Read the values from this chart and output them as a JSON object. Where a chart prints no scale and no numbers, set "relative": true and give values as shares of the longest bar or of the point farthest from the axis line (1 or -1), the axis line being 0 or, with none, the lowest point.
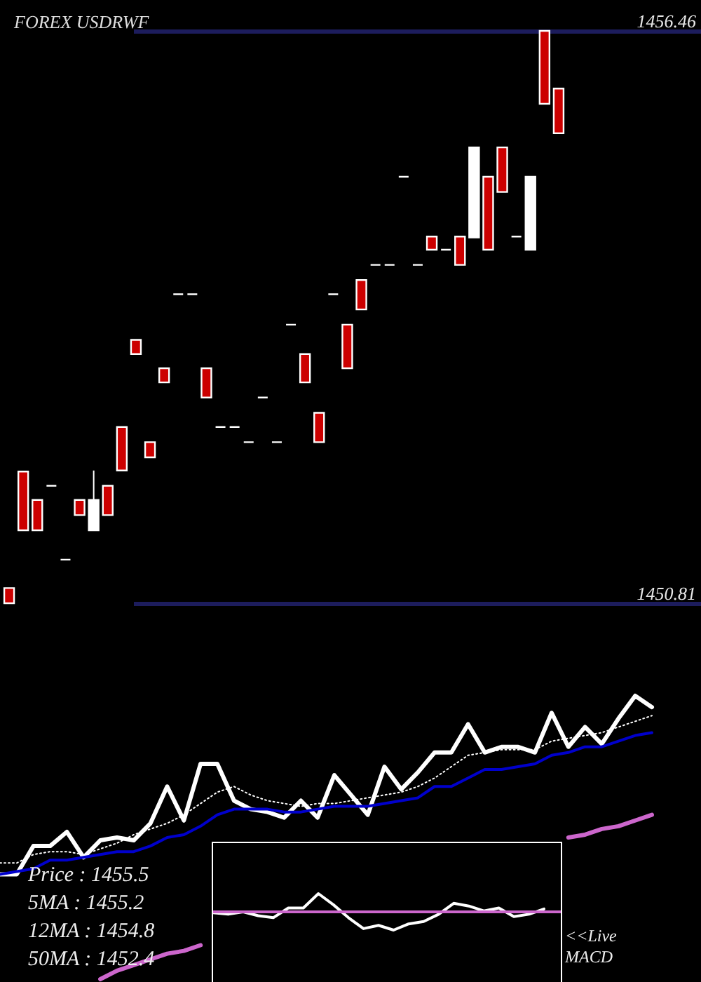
{
  "chart_data": [
    {
      "type": "candlestick",
      "title": "FOREX  USDRWF",
      "categories": [
        null,
        null,
        null,
        null,
        null,
        null,
        null,
        null,
        null,
        null,
        null,
        null,
        null,
        null,
        null,
        null,
        null,
        null,
        null,
        null,
        null,
        null,
        null,
        null,
        null,
        null,
        null,
        null,
        null,
        null,
        null,
        null,
        null,
        null,
        null,
        null,
        null,
        null,
        null,
        null
      ],
      "ohlc": [
        [
          1450.96,
          1450.96,
          1450.81,
          1450.81
        ],
        [
          1452.11,
          1452.11,
          1451.53,
          1451.53
        ],
        [
          1451.83,
          1451.83,
          1451.53,
          1451.53
        ],
        [
          1451.97,
          1451.97,
          1451.97,
          1451.97
        ],
        [
          1451.24,
          1451.24,
          1451.24,
          1451.24
        ],
        [
          1451.83,
          1451.83,
          1451.68,
          1451.68
        ],
        [
          1451.53,
          1452.12,
          1451.53,
          1451.83
        ],
        [
          1451.97,
          1451.97,
          1451.68,
          1451.68
        ],
        [
          1452.55,
          1452.55,
          1452.12,
          1452.12
        ],
        [
          1453.41,
          1453.41,
          1453.27,
          1453.27
        ],
        [
          1452.4,
          1452.4,
          1452.25,
          1452.25
        ],
        [
          1453.13,
          1453.13,
          1452.99,
          1452.99
        ],
        [
          1453.86,
          1453.86,
          1453.86,
          1453.86
        ],
        [
          1453.86,
          1453.86,
          1453.86,
          1453.86
        ],
        [
          1453.13,
          1453.13,
          1452.84,
          1452.84
        ],
        [
          1452.55,
          1452.55,
          1452.55,
          1452.55
        ],
        [
          1452.55,
          1452.55,
          1452.55,
          1452.55
        ],
        [
          1452.4,
          1452.4,
          1452.4,
          1452.4
        ],
        [
          1452.84,
          1452.84,
          1452.84,
          1452.84
        ],
        [
          1452.4,
          1452.4,
          1452.4,
          1452.4
        ],
        [
          1453.56,
          1453.56,
          1453.56,
          1453.56
        ],
        [
          1453.27,
          1453.27,
          1452.99,
          1452.99
        ],
        [
          1452.69,
          1452.69,
          1452.4,
          1452.4
        ],
        [
          1453.86,
          1453.86,
          1453.86,
          1453.86
        ],
        [
          1453.56,
          1453.56,
          1453.13,
          1453.13
        ],
        [
          1454.0,
          1454.0,
          1453.71,
          1453.71
        ],
        [
          1454.15,
          1454.15,
          1454.15,
          1454.15
        ],
        [
          1454.15,
          1454.15,
          1454.15,
          1454.15
        ],
        [
          1455.02,
          1455.02,
          1455.02,
          1455.02
        ],
        [
          1454.15,
          1454.15,
          1454.15,
          1454.15
        ],
        [
          1454.43,
          1454.43,
          1454.3,
          1454.3
        ],
        [
          1454.3,
          1454.3,
          1454.3,
          1454.3
        ],
        [
          1454.43,
          1454.43,
          1454.15,
          1454.15
        ],
        [
          1454.42,
          1455.31,
          1454.42,
          1455.31
        ],
        [
          1455.02,
          1455.02,
          1454.3,
          1454.3
        ],
        [
          1455.31,
          1455.31,
          1454.87,
          1454.87
        ],
        [
          1454.43,
          1454.43,
          1454.43,
          1454.43
        ],
        [
          1454.3,
          1455.02,
          1454.3,
          1455.02
        ],
        [
          1456.46,
          1456.46,
          1455.74,
          1455.74
        ],
        [
          1455.89,
          1455.89,
          1455.45,
          1455.45
        ]
      ],
      "colors": [
        "#cc0000",
        "#cc0000",
        "#cc0000",
        "#ffffff",
        "#ffffff",
        "#cc0000",
        "#ffffff",
        "#cc0000",
        "#cc0000",
        "#cc0000",
        "#cc0000",
        "#cc0000",
        "#ffffff",
        "#ffffff",
        "#cc0000",
        "#ffffff",
        "#ffffff",
        "#ffffff",
        "#ffffff",
        "#ffffff",
        "#ffffff",
        "#cc0000",
        "#cc0000",
        "#ffffff",
        "#cc0000",
        "#cc0000",
        "#ffffff",
        "#ffffff",
        "#ffffff",
        "#ffffff",
        "#cc0000",
        "#ffffff",
        "#cc0000",
        "#ffffff",
        "#cc0000",
        "#cc0000",
        "#ffffff",
        "#ffffff",
        "#cc0000",
        "#cc0000"
      ],
      "ylim": [
        1450.81,
        1456.46
      ],
      "yticks": [
        1450.81,
        1456.46
      ],
      "grid": "y"
    },
    {
      "type": "line",
      "relative": true,
      "categories": [
        null,
        null,
        null,
        null,
        null,
        null,
        null,
        null,
        null,
        null,
        null,
        null,
        null,
        null,
        null,
        null,
        null,
        null,
        null,
        null,
        null,
        null,
        null,
        null,
        null,
        null,
        null,
        null,
        null,
        null,
        null,
        null,
        null,
        null,
        null,
        null,
        null,
        null,
        null,
        null
      ],
      "series": [
        {
          "color": "#ffffff",
          "values": [
            0.37,
            0.37,
            0.47,
            0.47,
            0.52,
            0.43,
            0.49,
            0.5,
            0.49,
            0.55,
            0.68,
            0.56,
            0.76,
            0.76,
            0.63,
            0.6,
            0.59,
            0.57,
            0.63,
            0.57,
            0.72,
            0.65,
            0.58,
            0.75,
            0.67,
            0.73,
            0.8,
            0.8,
            0.9,
            0.8,
            0.82,
            0.82,
            0.8,
            0.94,
            0.82,
            0.89,
            0.83,
            0.92,
            1.0,
            0.96
          ]
        },
        {
          "color": "#ffffff",
          "line_style": "dotted",
          "values": [
            0.41,
            0.41,
            0.44,
            0.45,
            0.45,
            0.44,
            0.46,
            0.48,
            0.51,
            0.53,
            0.55,
            0.58,
            0.62,
            0.66,
            0.68,
            0.65,
            0.63,
            0.62,
            0.61,
            0.62,
            0.62,
            0.63,
            0.64,
            0.65,
            0.66,
            0.68,
            0.71,
            0.75,
            0.79,
            0.8,
            0.81,
            0.81,
            0.81,
            0.84,
            0.85,
            0.86,
            0.87,
            0.89,
            0.91,
            0.93
          ]
        },
        {
          "color": "#0000cc",
          "values": [
            0.37,
            0.38,
            0.39,
            0.42,
            0.42,
            0.43,
            0.44,
            0.45,
            0.45,
            0.47,
            0.5,
            0.51,
            0.54,
            0.58,
            0.6,
            0.6,
            0.6,
            0.59,
            0.59,
            0.6,
            0.61,
            0.61,
            0.61,
            0.62,
            0.63,
            0.64,
            0.68,
            0.68,
            0.71,
            0.74,
            0.74,
            0.75,
            0.76,
            0.79,
            0.8,
            0.82,
            0.82,
            0.84,
            0.86,
            0.87
          ]
        },
        {
          "color": "#cc66cc",
          "values": [
            null,
            null,
            null,
            null,
            null,
            null,
            0.0,
            0.03,
            0.05,
            0.07,
            0.09,
            0.1,
            0.12,
            null,
            null,
            null,
            null,
            null,
            null,
            null,
            null,
            null,
            null,
            null,
            null,
            null,
            null,
            null,
            null,
            null,
            null,
            null,
            null,
            null,
            0.5,
            0.51,
            0.53,
            0.54,
            0.56,
            0.58
          ]
        }
      ],
      "annotations": [
        "Price   : 1455.5",
        "5MA : 1455.2",
        "12MA : 1454.8",
        "50MA : 1452.4"
      ]
    },
    {
      "type": "line",
      "relative": true,
      "categories": [
        null,
        null,
        null,
        null,
        null,
        null,
        null,
        null,
        null,
        null,
        null,
        null,
        null,
        null,
        null,
        null,
        null,
        null,
        null,
        null,
        null,
        null,
        null
      ],
      "series": [
        {
          "color": "#ffffff",
          "values": [
            -0.05,
            -0.13,
            0,
            -0.21,
            -0.32,
            0.21,
            0.21,
            1.0,
            0.39,
            -0.32,
            -0.92,
            -0.74,
            -1.0,
            -0.66,
            -0.53,
            -0.13,
            0.47,
            0.32,
            0.05,
            0.21,
            -0.26,
            -0.13,
            0.16
          ]
        }
      ],
      "ref_lines": [
        {
          "axis": "y",
          "value": 0,
          "color": "#cc66cc"
        }
      ],
      "annotations": [
        "<<Live MACD"
      ]
    }
  ]
}
